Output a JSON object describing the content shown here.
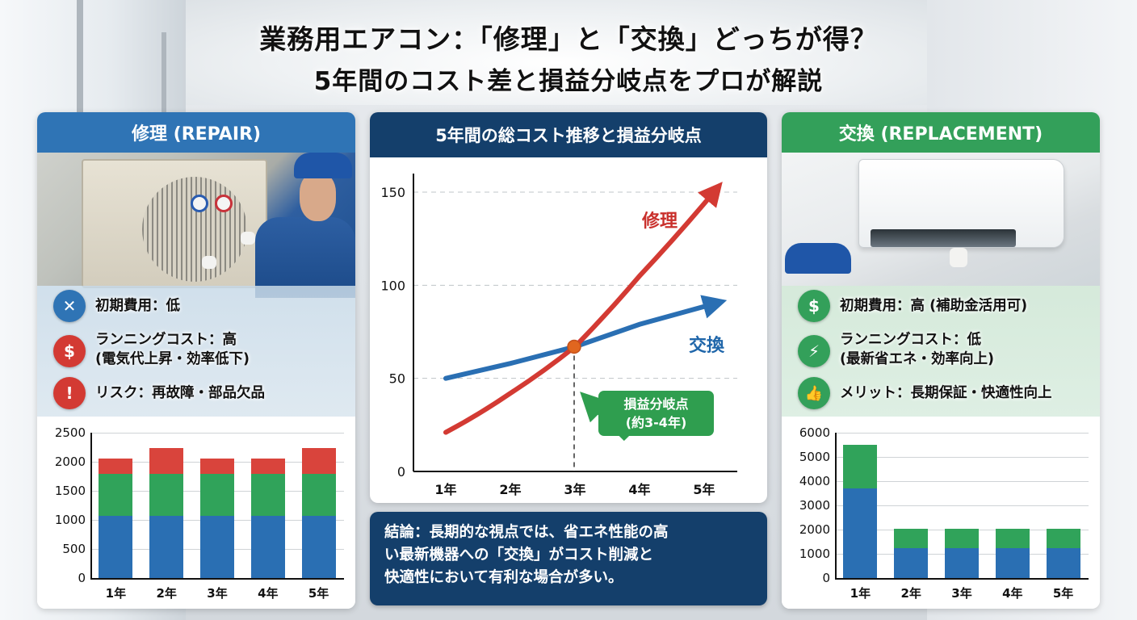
{
  "title": {
    "line1": "業務用エアコン：「修理」と「交換」どっちが得？",
    "line2": "5年間のコスト差と損益分岐点をプロが解説"
  },
  "colors": {
    "repair_blue": "#2f74b5",
    "navy": "#143f6b",
    "replace_green": "#33a05a",
    "red": "#d33a33",
    "seg_blue": "#2a6fb3",
    "seg_green": "#30a35a",
    "seg_red": "#d9443c",
    "orange_dot": "#e0661f"
  },
  "repair_panel": {
    "header": "修理 (REPAIR)",
    "features": [
      {
        "icon": "wrench-screwdriver-icon",
        "glyph": "✕",
        "line1": "初期費用：低",
        "line2": ""
      },
      {
        "icon": "money-bag-icon",
        "glyph": "$",
        "line1": "ランニングコスト：高",
        "line2": "(電気代上昇・効率低下)"
      },
      {
        "icon": "shield-alert-icon",
        "glyph": "!",
        "line1": "リスク：再故障・部品欠品",
        "line2": ""
      }
    ]
  },
  "replacement_panel": {
    "header": "交換 (REPLACEMENT)",
    "features": [
      {
        "icon": "money-bag-icon",
        "glyph": "$",
        "line1": "初期費用：高 (補助金活用可)",
        "line2": ""
      },
      {
        "icon": "lightning-icon",
        "glyph": "⚡",
        "line1": "ランニングコスト：低",
        "line2": "(最新省エネ・効率向上)"
      },
      {
        "icon": "thumbs-up-icon",
        "glyph": "👍",
        "line1": "メリット：長期保証・快適性向上",
        "line2": ""
      }
    ]
  },
  "center_panel": {
    "header": "5年間の総コスト推移と損益分岐点",
    "repair_label": "修理",
    "replace_label": "交換",
    "bep_line1": "損益分岐点",
    "bep_line2": "(約3-4年)"
  },
  "conclusion": {
    "line1": "結論：長期的な視点では、省エネ性能の高",
    "line2": "い最新機器への「交換」がコスト削減と",
    "line3": "快適性において有利な場合が多い。"
  },
  "chart_data": [
    {
      "id": "repair-annual-cost",
      "type": "bar",
      "stacked": true,
      "title": "",
      "categories": [
        "1年",
        "2年",
        "3年",
        "4年",
        "5年"
      ],
      "series": [
        {
          "name": "blue segment",
          "color": "#2a6fb3",
          "values": [
            1075,
            1075,
            1075,
            1075,
            1075
          ]
        },
        {
          "name": "green segment",
          "color": "#30a35a",
          "values": [
            715,
            715,
            715,
            715,
            715
          ]
        },
        {
          "name": "red segment",
          "color": "#d9443c",
          "values": [
            270,
            440,
            270,
            270,
            440
          ]
        }
      ],
      "totals": [
        2060,
        2230,
        2060,
        2060,
        2230
      ],
      "yticks": [
        0,
        500,
        1000,
        1500,
        2000,
        2500
      ],
      "ylim": [
        0,
        2500
      ],
      "grid": true,
      "legend": "none"
    },
    {
      "id": "total-cost-lines",
      "type": "line",
      "title": "5年間の総コスト推移と損益分岐点",
      "categories": [
        "1年",
        "2年",
        "3年",
        "4年",
        "5年"
      ],
      "series": [
        {
          "name": "修理",
          "color": "#d33a33",
          "values": [
            21,
            42,
            67,
            105,
            150
          ]
        },
        {
          "name": "交換",
          "color": "#2a6fb3",
          "values": [
            50,
            58,
            67,
            79,
            90
          ]
        }
      ],
      "yticks": [
        0,
        50,
        100,
        150
      ],
      "ylim": [
        0,
        150
      ],
      "grid": "dashed",
      "annotations": [
        {
          "x": "3年",
          "y": 67,
          "text": "損益分岐点 (約3-4年)"
        }
      ]
    },
    {
      "id": "replacement-annual-cost",
      "type": "bar",
      "stacked": true,
      "title": "",
      "categories": [
        "1年",
        "2年",
        "3年",
        "4年",
        "5年"
      ],
      "series": [
        {
          "name": "blue segment",
          "color": "#2a6fb3",
          "values": [
            3700,
            1230,
            1230,
            1230,
            1230
          ]
        },
        {
          "name": "green segment",
          "color": "#30a35a",
          "values": [
            1800,
            820,
            820,
            820,
            820
          ]
        }
      ],
      "totals": [
        5500,
        2050,
        2050,
        2050,
        2050
      ],
      "yticks": [
        0,
        1000,
        2000,
        3000,
        4000,
        5000,
        6000
      ],
      "ylim": [
        0,
        6000
      ],
      "grid": true,
      "legend": "none"
    }
  ]
}
